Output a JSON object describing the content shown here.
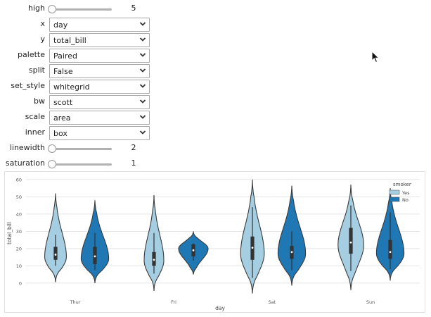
{
  "controls": {
    "high": {
      "label": "high",
      "value": "5",
      "fraction": 0.0
    },
    "x": {
      "label": "x",
      "value": "day"
    },
    "y": {
      "label": "y",
      "value": "total_bill"
    },
    "palette": {
      "label": "palette",
      "value": "Paired"
    },
    "split": {
      "label": "split",
      "value": "False"
    },
    "set_style": {
      "label": "set_style",
      "value": "whitegrid"
    },
    "bw": {
      "label": "bw",
      "value": "scott"
    },
    "scale": {
      "label": "scale",
      "value": "area"
    },
    "inner": {
      "label": "inner",
      "value": "box"
    },
    "linewidth": {
      "label": "linewidth",
      "value": "2",
      "fraction": 0.0
    },
    "saturation": {
      "label": "saturation",
      "value": "1",
      "fraction": 0.0
    }
  },
  "icons": {
    "dropdown": "chevron-down-icon",
    "cursor": "mouse-pointer-icon"
  },
  "chart_data": {
    "type": "violin",
    "xlabel": "day",
    "ylabel": "total_bill",
    "categories": [
      "Thur",
      "Fri",
      "Sat",
      "Sun"
    ],
    "ylim": [
      -7,
      62
    ],
    "yticks": [
      0,
      10,
      20,
      30,
      40,
      50,
      60
    ],
    "grid": true,
    "inner": "box",
    "legend": {
      "title": "smoker",
      "placement": "top-right"
    },
    "series": [
      {
        "name": "Yes",
        "color": "#a6cee3",
        "violins": [
          {
            "category": "Thur",
            "min": 0.5,
            "q1": 13.5,
            "median": 16.5,
            "q3": 21,
            "max": 52,
            "whisker_low": 10,
            "whisker_high": 28,
            "mode": 15,
            "spread": 0.55
          },
          {
            "category": "Fri",
            "min": -4.5,
            "q1": 10,
            "median": 13.5,
            "q3": 18,
            "max": 51,
            "whisker_low": 5.5,
            "whisker_high": 29,
            "mode": 13,
            "spread": 0.5
          },
          {
            "category": "Sat",
            "min": -6,
            "q1": 13.5,
            "median": 20.5,
            "q3": 27,
            "max": 60,
            "whisker_low": 3,
            "whisker_high": 44,
            "mode": 17,
            "spread": 0.6
          },
          {
            "category": "Sun",
            "min": -4,
            "q1": 17,
            "median": 23.5,
            "q3": 32,
            "max": 57,
            "whisker_low": 7,
            "whisker_high": 45,
            "mode": 22,
            "spread": 0.65
          }
        ]
      },
      {
        "name": "No",
        "color": "#1f78b4",
        "violins": [
          {
            "category": "Thur",
            "min": 0,
            "q1": 11,
            "median": 15.5,
            "q3": 21,
            "max": 48,
            "whisker_low": 7.5,
            "whisker_high": 29,
            "mode": 14,
            "spread": 0.7
          },
          {
            "category": "Fri",
            "min": 5,
            "q1": 15.5,
            "median": 19,
            "q3": 22.5,
            "max": 30,
            "whisker_low": 13,
            "whisker_high": 23,
            "mode": 20,
            "spread": 0.75
          },
          {
            "category": "Sat",
            "min": -1.5,
            "q1": 14,
            "median": 18,
            "q3": 21.5,
            "max": 56.5,
            "whisker_low": 7.5,
            "whisker_high": 30,
            "mode": 17,
            "spread": 0.7
          },
          {
            "category": "Sun",
            "min": 1.5,
            "q1": 14,
            "median": 18,
            "q3": 25,
            "max": 55,
            "whisker_low": 8,
            "whisker_high": 41,
            "mode": 17,
            "spread": 0.7
          }
        ]
      }
    ]
  }
}
